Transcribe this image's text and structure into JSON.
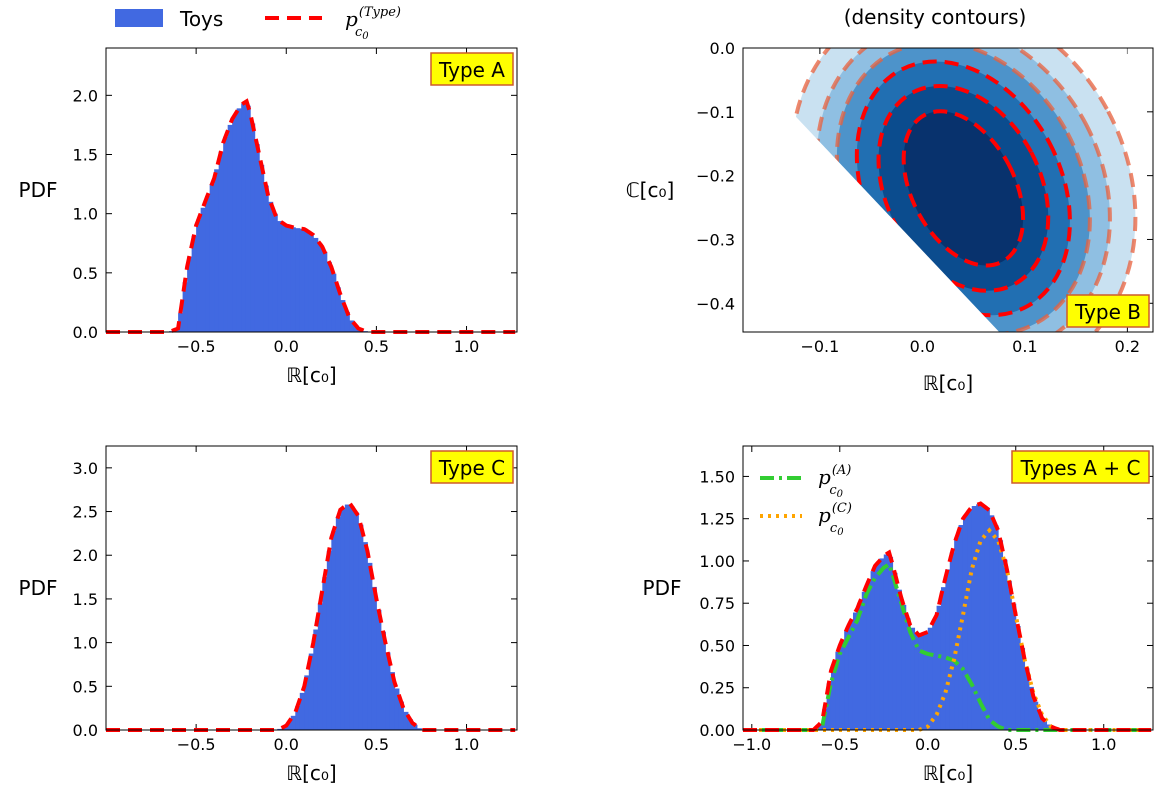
{
  "legend": {
    "toys": "Toys",
    "p_base": "p",
    "p_sub": "c",
    "p_subsub": "0",
    "p_sup": "(Type)"
  },
  "colors": {
    "hist": "#4169e1",
    "model": "#ff0000",
    "compA": "#32cd32",
    "compC": "#ffa500",
    "badge_fill": "#ffff00",
    "badge_edge": "#cd5c2b",
    "contour_blue": "#08306b",
    "contour_orange": "#e8603c"
  },
  "chart_data": [
    {
      "id": "typeA",
      "type": "bar",
      "badge": "Type A",
      "ylabel": "PDF",
      "xlabel": "ℝ[c₀]",
      "xlim": [
        -1.0,
        1.28
      ],
      "ylim": [
        0,
        2.4
      ],
      "xticks": [
        -0.5,
        0.0,
        0.5,
        1.0
      ],
      "xtick_labels": [
        "−0.5",
        "0.0",
        "0.5",
        "1.0"
      ],
      "yticks": [
        0,
        0.5,
        1.0,
        1.5,
        2.0
      ],
      "ytick_labels": [
        "0.0",
        "0.5",
        "1.0",
        "1.5",
        "2.0"
      ],
      "model_x": [
        -1.0,
        -0.65,
        -0.6,
        -0.55,
        -0.5,
        -0.45,
        -0.4,
        -0.35,
        -0.3,
        -0.25,
        -0.22,
        -0.2,
        -0.15,
        -0.1,
        -0.05,
        0.0,
        0.05,
        0.1,
        0.15,
        0.2,
        0.25,
        0.3,
        0.35,
        0.4,
        0.45,
        0.5,
        1.28
      ],
      "model_y": [
        0.0,
        0.0,
        0.03,
        0.55,
        0.9,
        1.1,
        1.3,
        1.6,
        1.8,
        1.92,
        1.95,
        1.85,
        1.5,
        1.15,
        0.95,
        0.9,
        0.88,
        0.87,
        0.82,
        0.72,
        0.55,
        0.32,
        0.12,
        0.03,
        0.0,
        0.0,
        0.0
      ]
    },
    {
      "id": "typeB",
      "type": "heatmap",
      "badge": "Type B",
      "title": "(density contours)",
      "ylabel": "ℂ[c₀]",
      "xlabel": "ℝ[c₀]",
      "xlim": [
        -0.175,
        0.225
      ],
      "ylim": [
        -0.445,
        0.0
      ],
      "xticks": [
        -0.1,
        0.0,
        0.1,
        0.2
      ],
      "xtick_labels": [
        "−0.1",
        "0.0",
        "0.1",
        "0.2"
      ],
      "yticks": [
        -0.4,
        -0.3,
        -0.2,
        -0.1,
        0.0
      ],
      "ytick_labels": [
        "−0.4",
        "−0.3",
        "−0.2",
        "−0.1",
        "0.0"
      ],
      "contour_center": [
        0.04,
        -0.22
      ],
      "contour_radii_x": [
        0.05,
        0.075,
        0.095,
        0.115,
        0.135,
        0.16
      ],
      "contour_radii_y": [
        0.13,
        0.17,
        0.21,
        0.24,
        0.27,
        0.31
      ]
    },
    {
      "id": "typeC",
      "type": "bar",
      "badge": "Type C",
      "ylabel": "PDF",
      "xlabel": "ℝ[c₀]",
      "xlim": [
        -1.0,
        1.28
      ],
      "ylim": [
        0,
        3.25
      ],
      "xticks": [
        -0.5,
        0.0,
        0.5,
        1.0
      ],
      "xtick_labels": [
        "−0.5",
        "0.0",
        "0.5",
        "1.0"
      ],
      "yticks": [
        0,
        0.5,
        1.0,
        1.5,
        2.0,
        2.5,
        3.0
      ],
      "ytick_labels": [
        "0.0",
        "0.5",
        "1.0",
        "1.5",
        "2.0",
        "2.5",
        "3.0"
      ],
      "model_x": [
        -1.0,
        -0.05,
        0.0,
        0.05,
        0.1,
        0.15,
        0.2,
        0.25,
        0.3,
        0.35,
        0.4,
        0.45,
        0.5,
        0.55,
        0.6,
        0.65,
        0.7,
        0.75,
        1.28
      ],
      "model_y": [
        0.0,
        0.0,
        0.05,
        0.2,
        0.5,
        1.0,
        1.6,
        2.2,
        2.52,
        2.6,
        2.45,
        2.05,
        1.5,
        1.0,
        0.55,
        0.25,
        0.08,
        0.0,
        0.0
      ]
    },
    {
      "id": "typesAC",
      "type": "bar",
      "badge": "Types A + C",
      "ylabel": "PDF",
      "xlabel": "ℝ[c₀]",
      "xlim": [
        -1.05,
        1.28
      ],
      "ylim": [
        0,
        1.68
      ],
      "xticks": [
        -1.0,
        -0.5,
        0.0,
        0.5,
        1.0
      ],
      "xtick_labels": [
        "−1.0",
        "−0.5",
        "0.0",
        "0.5",
        "1.0"
      ],
      "yticks": [
        0,
        0.25,
        0.5,
        0.75,
        1.0,
        1.25,
        1.5
      ],
      "ytick_labels": [
        "0.00",
        "0.25",
        "0.50",
        "0.75",
        "1.00",
        "1.25",
        "1.50"
      ],
      "legend": [
        {
          "name": "p_c0^(A)",
          "sup": "(A)"
        },
        {
          "name": "p_c0^(C)",
          "sup": "(C)"
        }
      ],
      "model_x": [
        -1.0,
        -0.65,
        -0.6,
        -0.55,
        -0.5,
        -0.45,
        -0.4,
        -0.35,
        -0.3,
        -0.25,
        -0.22,
        -0.2,
        -0.15,
        -0.1,
        -0.05,
        0.0,
        0.05,
        0.1,
        0.15,
        0.2,
        0.25,
        0.3,
        0.35,
        0.4,
        0.45,
        0.5,
        0.55,
        0.6,
        0.65,
        0.7,
        0.75,
        1.28
      ],
      "model_y": [
        0.0,
        0.0,
        0.05,
        0.35,
        0.5,
        0.62,
        0.72,
        0.85,
        0.97,
        1.03,
        1.05,
        0.98,
        0.78,
        0.62,
        0.56,
        0.58,
        0.68,
        0.9,
        1.1,
        1.25,
        1.32,
        1.34,
        1.3,
        1.18,
        0.95,
        0.68,
        0.42,
        0.2,
        0.07,
        0.02,
        0.0,
        0.0
      ],
      "compA_x": [
        -1.0,
        -0.65,
        -0.6,
        -0.55,
        -0.5,
        -0.45,
        -0.4,
        -0.35,
        -0.3,
        -0.25,
        -0.22,
        -0.2,
        -0.15,
        -0.1,
        -0.05,
        0.0,
        0.05,
        0.1,
        0.15,
        0.2,
        0.25,
        0.3,
        0.35,
        0.4,
        0.45,
        0.5,
        1.28
      ],
      "compA_y": [
        0.0,
        0.0,
        0.02,
        0.28,
        0.45,
        0.55,
        0.65,
        0.8,
        0.9,
        0.96,
        0.98,
        0.92,
        0.75,
        0.58,
        0.47,
        0.45,
        0.44,
        0.43,
        0.41,
        0.36,
        0.27,
        0.16,
        0.06,
        0.02,
        0.0,
        0.0,
        0.0
      ],
      "compC_x": [
        -1.0,
        -0.05,
        0.0,
        0.05,
        0.1,
        0.15,
        0.2,
        0.25,
        0.3,
        0.35,
        0.4,
        0.45,
        0.5,
        0.55,
        0.6,
        0.65,
        0.7,
        0.75,
        1.28
      ],
      "compC_y": [
        0.0,
        0.0,
        0.02,
        0.09,
        0.22,
        0.42,
        0.68,
        0.95,
        1.12,
        1.18,
        1.12,
        0.95,
        0.68,
        0.42,
        0.22,
        0.09,
        0.02,
        0.0,
        0.0
      ]
    }
  ]
}
